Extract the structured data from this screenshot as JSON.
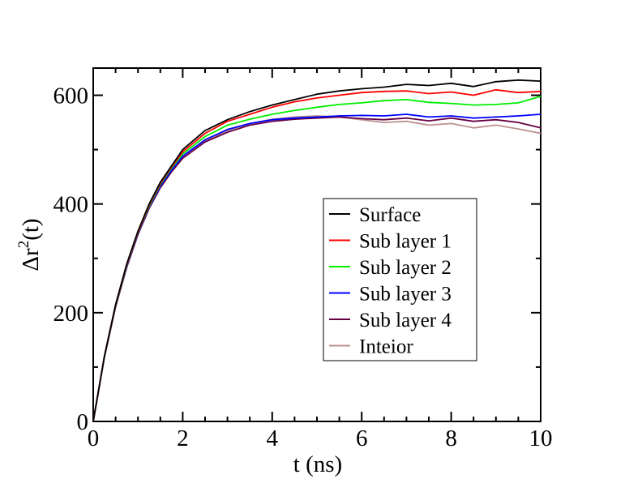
{
  "chart_data": {
    "type": "line",
    "title": "",
    "xlabel": "t (ns)",
    "ylabel_main": "Δr",
    "ylabel_sup": "2",
    "ylabel_tail": "(t)",
    "xlim": [
      0,
      10
    ],
    "ylim": [
      0,
      650
    ],
    "xticks": [
      0,
      2,
      4,
      6,
      8,
      10
    ],
    "xtick_labels": [
      "0",
      "2",
      "4",
      "6",
      "8",
      "10"
    ],
    "yticks": [
      0,
      200,
      400,
      600
    ],
    "ytick_labels": [
      "0",
      "200",
      "400",
      "600"
    ],
    "grid": false,
    "legend_position": "center-right",
    "x": [
      0,
      0.25,
      0.5,
      0.75,
      1.0,
      1.25,
      1.5,
      1.75,
      2.0,
      2.5,
      3.0,
      3.5,
      4.0,
      4.5,
      5.0,
      5.5,
      6.0,
      6.5,
      7.0,
      7.5,
      8.0,
      8.5,
      9.0,
      9.5,
      10.0
    ],
    "series": [
      {
        "name": "Surface",
        "color": "#000000",
        "values": [
          0,
          120,
          215,
          290,
          350,
          400,
          440,
          470,
          500,
          535,
          555,
          570,
          582,
          592,
          602,
          608,
          612,
          615,
          620,
          618,
          622,
          616,
          625,
          628,
          626
        ]
      },
      {
        "name": "Sub layer 1",
        "color": "#ff0000",
        "values": [
          0,
          120,
          214,
          288,
          348,
          398,
          438,
          468,
          496,
          530,
          552,
          565,
          578,
          588,
          595,
          600,
          605,
          607,
          608,
          603,
          606,
          600,
          610,
          605,
          607
        ]
      },
      {
        "name": "Sub layer 2",
        "color": "#00ee00",
        "values": [
          0,
          119,
          213,
          287,
          347,
          396,
          436,
          466,
          492,
          524,
          545,
          556,
          565,
          572,
          578,
          583,
          586,
          590,
          592,
          587,
          585,
          582,
          583,
          586,
          598
        ]
      },
      {
        "name": "Sub layer 3",
        "color": "#0000ff",
        "values": [
          0,
          119,
          212,
          285,
          345,
          394,
          433,
          462,
          488,
          518,
          537,
          548,
          555,
          558,
          560,
          562,
          563,
          562,
          565,
          560,
          562,
          558,
          560,
          562,
          565
        ]
      },
      {
        "name": "Sub layer 4",
        "color": "#660044",
        "values": [
          0,
          118,
          211,
          284,
          344,
          392,
          430,
          459,
          484,
          514,
          532,
          545,
          552,
          556,
          558,
          560,
          557,
          555,
          558,
          553,
          558,
          552,
          555,
          550,
          540
        ]
      },
      {
        "name": "Inteior",
        "color": "#bc8f8f",
        "values": [
          0,
          118,
          211,
          284,
          344,
          393,
          431,
          460,
          486,
          515,
          535,
          548,
          556,
          560,
          562,
          560,
          555,
          550,
          552,
          545,
          548,
          540,
          545,
          538,
          530
        ]
      }
    ]
  }
}
